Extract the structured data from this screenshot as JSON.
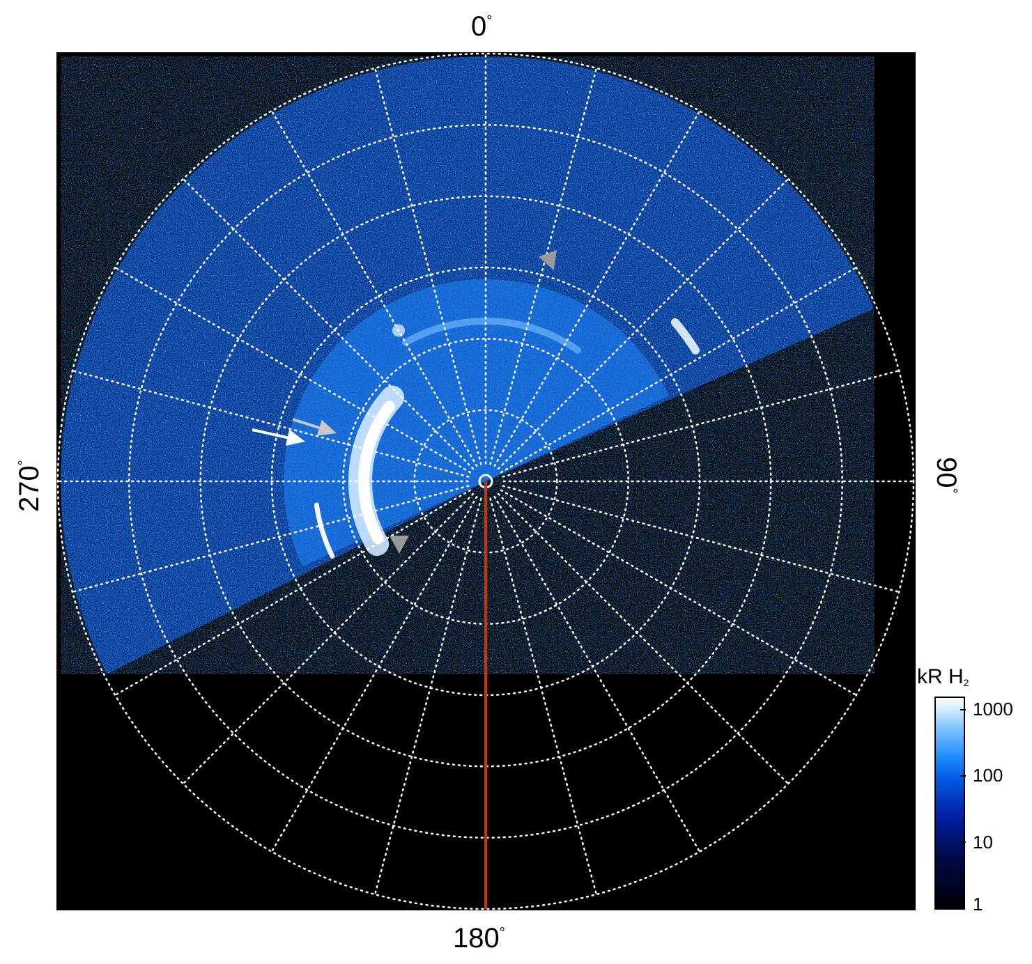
{
  "chart_data": {
    "type": "heatmap",
    "projection": "polar",
    "background": "#000000",
    "angular_labels": [
      {
        "angle_deg": 0,
        "text": "0"
      },
      {
        "angle_deg": 90,
        "text": "90"
      },
      {
        "angle_deg": 180,
        "text": "180"
      },
      {
        "angle_deg": 270,
        "text": "270"
      }
    ],
    "degree_symbol": "°",
    "grid": {
      "style": "dotted",
      "color": "#ffffff",
      "radial_spokes_every_deg": 15,
      "rings": 6
    },
    "meridian_line": {
      "angle_deg": 180,
      "color": "#cc3300"
    },
    "colorbar": {
      "title": "kR H",
      "title_subscript": "2",
      "scale": "log",
      "ticks": [
        "1000",
        "100",
        "10",
        "1"
      ],
      "colors": [
        "#000000",
        "#000a4a",
        "#0055dd",
        "#1e8cff",
        "#ffffff"
      ]
    },
    "markers": [
      {
        "kind": "arrow",
        "color": "#ffffff"
      },
      {
        "kind": "arrow",
        "color": "#c8c8c8"
      },
      {
        "kind": "triangle",
        "color": "#9a9a9a"
      },
      {
        "kind": "triangle",
        "color": "#9a9a9a"
      }
    ]
  }
}
